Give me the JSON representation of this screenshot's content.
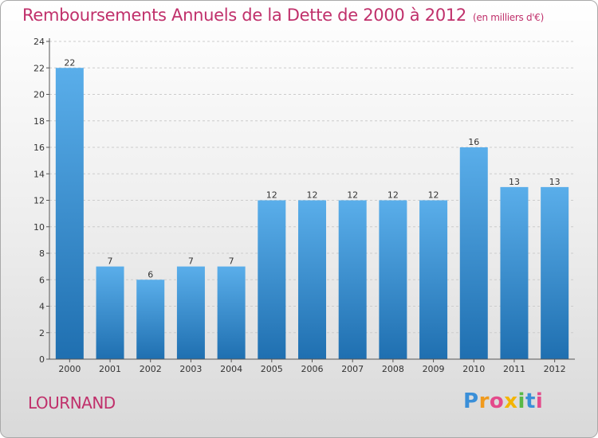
{
  "header": {
    "title": "Remboursements Annuels de la Dette de 2000 à 2012",
    "subtitle": "(en milliers d'€)"
  },
  "commune": "LOURNAND",
  "logo_text": "Proxiti",
  "colors": {
    "title": "#c0306b",
    "bar_top": "#5aaeea",
    "bar_bottom": "#1f6fb0",
    "axis": "#555555",
    "grid": "#cccccc"
  },
  "chart_data": {
    "type": "bar",
    "categories": [
      "2000",
      "2001",
      "2002",
      "2003",
      "2004",
      "2005",
      "2006",
      "2007",
      "2008",
      "2009",
      "2010",
      "2011",
      "2012"
    ],
    "values": [
      22,
      7,
      6,
      7,
      7,
      12,
      12,
      12,
      12,
      12,
      16,
      13,
      13
    ],
    "title": "Remboursements Annuels de la Dette de 2000 à 2012",
    "subtitle": "(en milliers d'€)",
    "xlabel": "",
    "ylabel": "",
    "ylim": [
      0,
      24
    ],
    "yticks": [
      0,
      2,
      4,
      6,
      8,
      10,
      12,
      14,
      16,
      18,
      20,
      22,
      24
    ],
    "grid": true,
    "data_labels": true
  }
}
